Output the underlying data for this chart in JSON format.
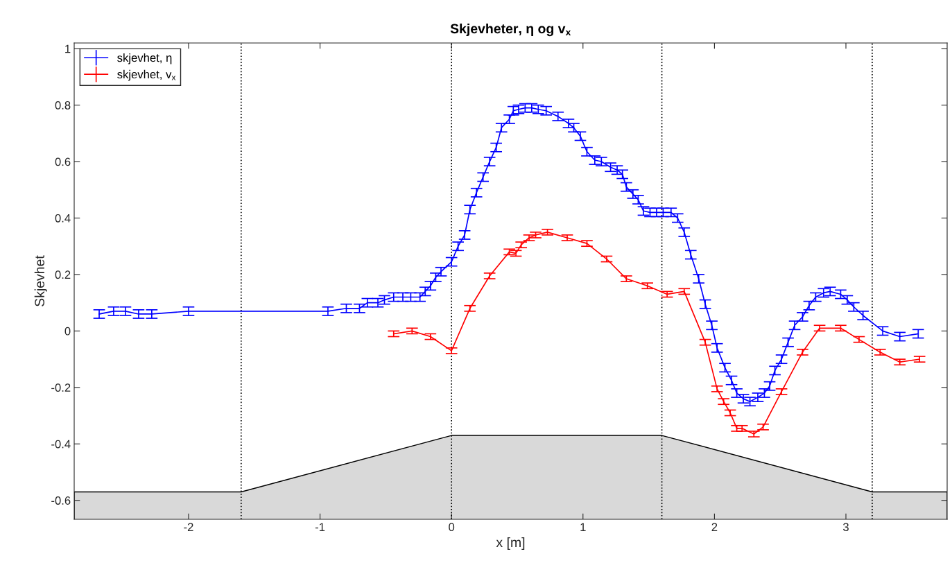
{
  "chart_data": {
    "type": "line",
    "title": "Skjevheter, η og v$_{x}$",
    "xlabel": "x [m]",
    "ylabel": "Skjevhet",
    "xlim": [
      -2.87,
      3.77
    ],
    "ylim": [
      -0.667,
      1.02
    ],
    "xticks": [
      -2,
      -1,
      0,
      1,
      2,
      3
    ],
    "yticks": [
      -0.6,
      -0.4,
      -0.2,
      0,
      0.2,
      0.4,
      0.6,
      0.8,
      1
    ],
    "grid": false,
    "legend": "top left",
    "marker": "none",
    "line_style": "solid",
    "ref_lines": [
      {
        "axis": "x",
        "value": -1.6,
        "color": "#000000",
        "line_style": "dotted"
      },
      {
        "axis": "x",
        "value": 0,
        "color": "#000000",
        "line_style": "dotted"
      },
      {
        "axis": "x",
        "value": 1.6,
        "color": "#000000",
        "line_style": "dotted"
      },
      {
        "axis": "x",
        "value": 3.2,
        "color": "#000000",
        "line_style": "dotted"
      }
    ],
    "series": [
      {
        "type": "area",
        "color": "#d9d9d9",
        "x": [
          -2.87,
          -1.6,
          0,
          1.6,
          3.2,
          3.77
        ],
        "values": [
          -0.57,
          -0.57,
          -0.37,
          -0.37,
          -0.57,
          -0.57
        ]
      },
      {
        "name": "skjevhet, η",
        "color": "#0000ff",
        "errors": [
          0.015,
          0.015,
          0.015,
          0.015,
          0.015,
          0.015,
          0.015,
          0.015,
          0.015,
          0.015,
          0.015,
          0.015,
          0.015,
          0.015,
          0.015,
          0.015,
          0.015,
          0.015,
          0.015,
          0.015,
          0.015,
          0.015,
          0.015,
          0.015,
          0.015,
          0.015,
          0.015,
          0.015,
          0.015,
          0.015,
          0.015,
          0.015,
          0.015,
          0.015,
          0.015,
          0.015,
          0.015,
          0.015,
          0.015,
          0.015,
          0.015,
          0.015,
          0.015,
          0.015,
          0.015,
          0.015,
          0.015,
          0.015,
          0.015,
          0.015,
          0.015,
          0.015,
          0.015,
          0.015,
          0.015,
          0.015,
          0.015,
          0.015,
          0.015,
          0.015,
          0.015,
          0.015,
          0.015,
          0.015,
          0.015,
          0.015,
          0.015,
          0.015,
          0.015,
          0.015,
          0.015,
          0.015,
          0.015,
          0.015,
          0.015,
          0.015,
          0.015,
          0.015,
          0.015,
          0.015,
          0.015,
          0.015,
          0.015,
          0.015,
          0.015
        ],
        "x": [
          -2.68,
          -2.57,
          -2.48,
          -2.38,
          -2.28,
          -2.0,
          -0.94,
          -0.8,
          -0.7,
          -0.64,
          -0.56,
          -0.51,
          -0.44,
          -0.37,
          -0.31,
          -0.24,
          -0.2,
          -0.16,
          -0.12,
          -0.08,
          0.0,
          0.05,
          0.1,
          0.14,
          0.19,
          0.24,
          0.29,
          0.34,
          0.38,
          0.44,
          0.47,
          0.51,
          0.56,
          0.61,
          0.66,
          0.72,
          0.81,
          0.89,
          0.93,
          0.98,
          1.03,
          1.09,
          1.14,
          1.21,
          1.26,
          1.3,
          1.33,
          1.38,
          1.42,
          1.46,
          1.51,
          1.56,
          1.61,
          1.67,
          1.72,
          1.77,
          1.82,
          1.88,
          1.93,
          1.98,
          2.02,
          2.08,
          2.13,
          2.17,
          2.22,
          2.27,
          2.33,
          2.38,
          2.42,
          2.46,
          2.51,
          2.56,
          2.61,
          2.67,
          2.72,
          2.77,
          2.83,
          2.88,
          2.96,
          3.01,
          3.06,
          3.13,
          3.28,
          3.41,
          3.55
        ],
        "values": [
          0.06,
          0.07,
          0.07,
          0.06,
          0.06,
          0.07,
          0.07,
          0.08,
          0.08,
          0.1,
          0.1,
          0.11,
          0.12,
          0.12,
          0.12,
          0.12,
          0.14,
          0.16,
          0.19,
          0.21,
          0.245,
          0.3,
          0.34,
          0.43,
          0.49,
          0.545,
          0.6,
          0.65,
          0.72,
          0.75,
          0.78,
          0.785,
          0.79,
          0.79,
          0.785,
          0.78,
          0.76,
          0.735,
          0.72,
          0.69,
          0.635,
          0.605,
          0.6,
          0.58,
          0.57,
          0.555,
          0.51,
          0.485,
          0.465,
          0.425,
          0.42,
          0.42,
          0.42,
          0.42,
          0.4,
          0.35,
          0.27,
          0.185,
          0.095,
          0.02,
          -0.06,
          -0.13,
          -0.175,
          -0.22,
          -0.24,
          -0.25,
          -0.235,
          -0.22,
          -0.195,
          -0.14,
          -0.1,
          -0.04,
          0.02,
          0.05,
          0.09,
          0.12,
          0.135,
          0.14,
          0.13,
          0.11,
          0.085,
          0.055,
          0.0,
          -0.02,
          -0.01
        ]
      },
      {
        "name": "skjevhet, v$_{x}$",
        "color": "#ff0000",
        "errors": [
          0.01,
          0.01,
          0.01,
          0.01,
          0.01,
          0.01,
          0.01,
          0.01,
          0.01,
          0.01,
          0.01,
          0.01,
          0.01,
          0.01,
          0.01,
          0.01,
          0.01,
          0.01,
          0.01,
          0.01,
          0.01,
          0.01,
          0.01,
          0.01,
          0.01,
          0.01,
          0.01,
          0.01,
          0.01,
          0.01,
          0.01,
          0.01,
          0.01,
          0.01,
          0.01
        ],
        "x": [
          -0.44,
          -0.3,
          -0.16,
          0.0,
          0.14,
          0.29,
          0.44,
          0.49,
          0.53,
          0.59,
          0.64,
          0.73,
          0.88,
          1.03,
          1.18,
          1.33,
          1.49,
          1.64,
          1.77,
          1.93,
          2.02,
          2.07,
          2.12,
          2.17,
          2.21,
          2.3,
          2.37,
          2.51,
          2.67,
          2.8,
          2.96,
          3.1,
          3.26,
          3.41,
          3.56
        ],
        "values": [
          -0.01,
          0.0,
          -0.02,
          -0.07,
          0.08,
          0.195,
          0.28,
          0.275,
          0.305,
          0.33,
          0.34,
          0.35,
          0.33,
          0.31,
          0.255,
          0.185,
          0.16,
          0.13,
          0.14,
          -0.04,
          -0.205,
          -0.25,
          -0.29,
          -0.345,
          -0.345,
          -0.365,
          -0.34,
          -0.215,
          -0.075,
          0.01,
          0.01,
          -0.03,
          -0.075,
          -0.11,
          -0.1
        ]
      }
    ]
  }
}
